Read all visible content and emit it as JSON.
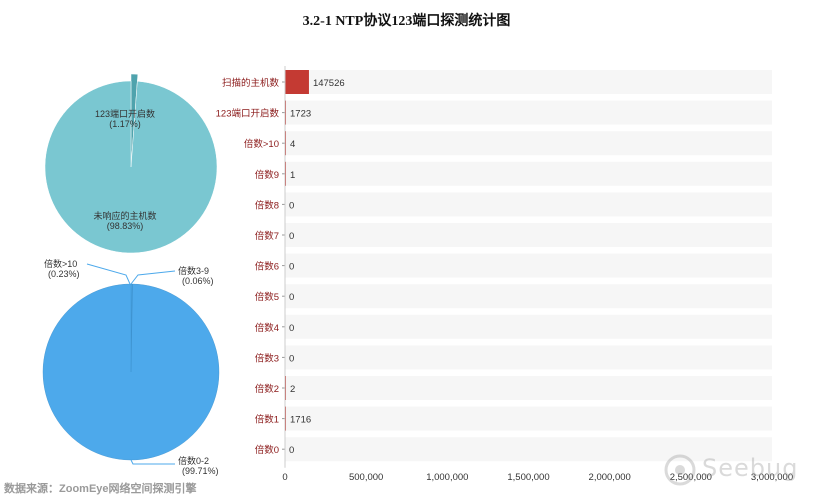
{
  "title": "3.2-1 NTP协议123端口探测统计图",
  "footer": {
    "source": "数据来源：ZoomEye网络空间探测引擎",
    "watermark": "Seebug"
  },
  "colors": {
    "pie_top": "#7ac7d1",
    "pie_top_slice": "#4fa3ad",
    "pie_bottom": "#4da9eb",
    "bar": "#c43a33",
    "bar_label": "#8b1a1a",
    "row_bg": "#f6f6f6"
  },
  "chart_data": [
    {
      "type": "pie",
      "slices": [
        {
          "label": "123端口开启数",
          "percent": "(1.17%)",
          "value": 1.17
        },
        {
          "label": "未响应的主机数",
          "percent": "(98.83%)",
          "value": 98.83
        }
      ]
    },
    {
      "type": "pie",
      "slices": [
        {
          "label": "倍数>10",
          "percent": "(0.23%)",
          "value": 0.23
        },
        {
          "label": "倍数3-9",
          "percent": "(0.06%)",
          "value": 0.06
        },
        {
          "label": "倍数0-2",
          "percent": "(99.71%)",
          "value": 99.71
        }
      ]
    },
    {
      "type": "bar",
      "orientation": "horizontal",
      "categories": [
        "扫描的主机数",
        "123端口开启数",
        "倍数>10",
        "倍数9",
        "倍数8",
        "倍数7",
        "倍数6",
        "倍数5",
        "倍数4",
        "倍数3",
        "倍数2",
        "倍数1",
        "倍数0"
      ],
      "values": [
        147526,
        1723,
        4,
        1,
        0,
        0,
        0,
        0,
        0,
        0,
        2,
        1716,
        0
      ],
      "xlim": [
        0,
        3000000
      ],
      "xticks": [
        "0",
        "500,000",
        "1,000,000",
        "1,500,000",
        "2,000,000",
        "2,500,000",
        "3,000,000"
      ]
    }
  ]
}
